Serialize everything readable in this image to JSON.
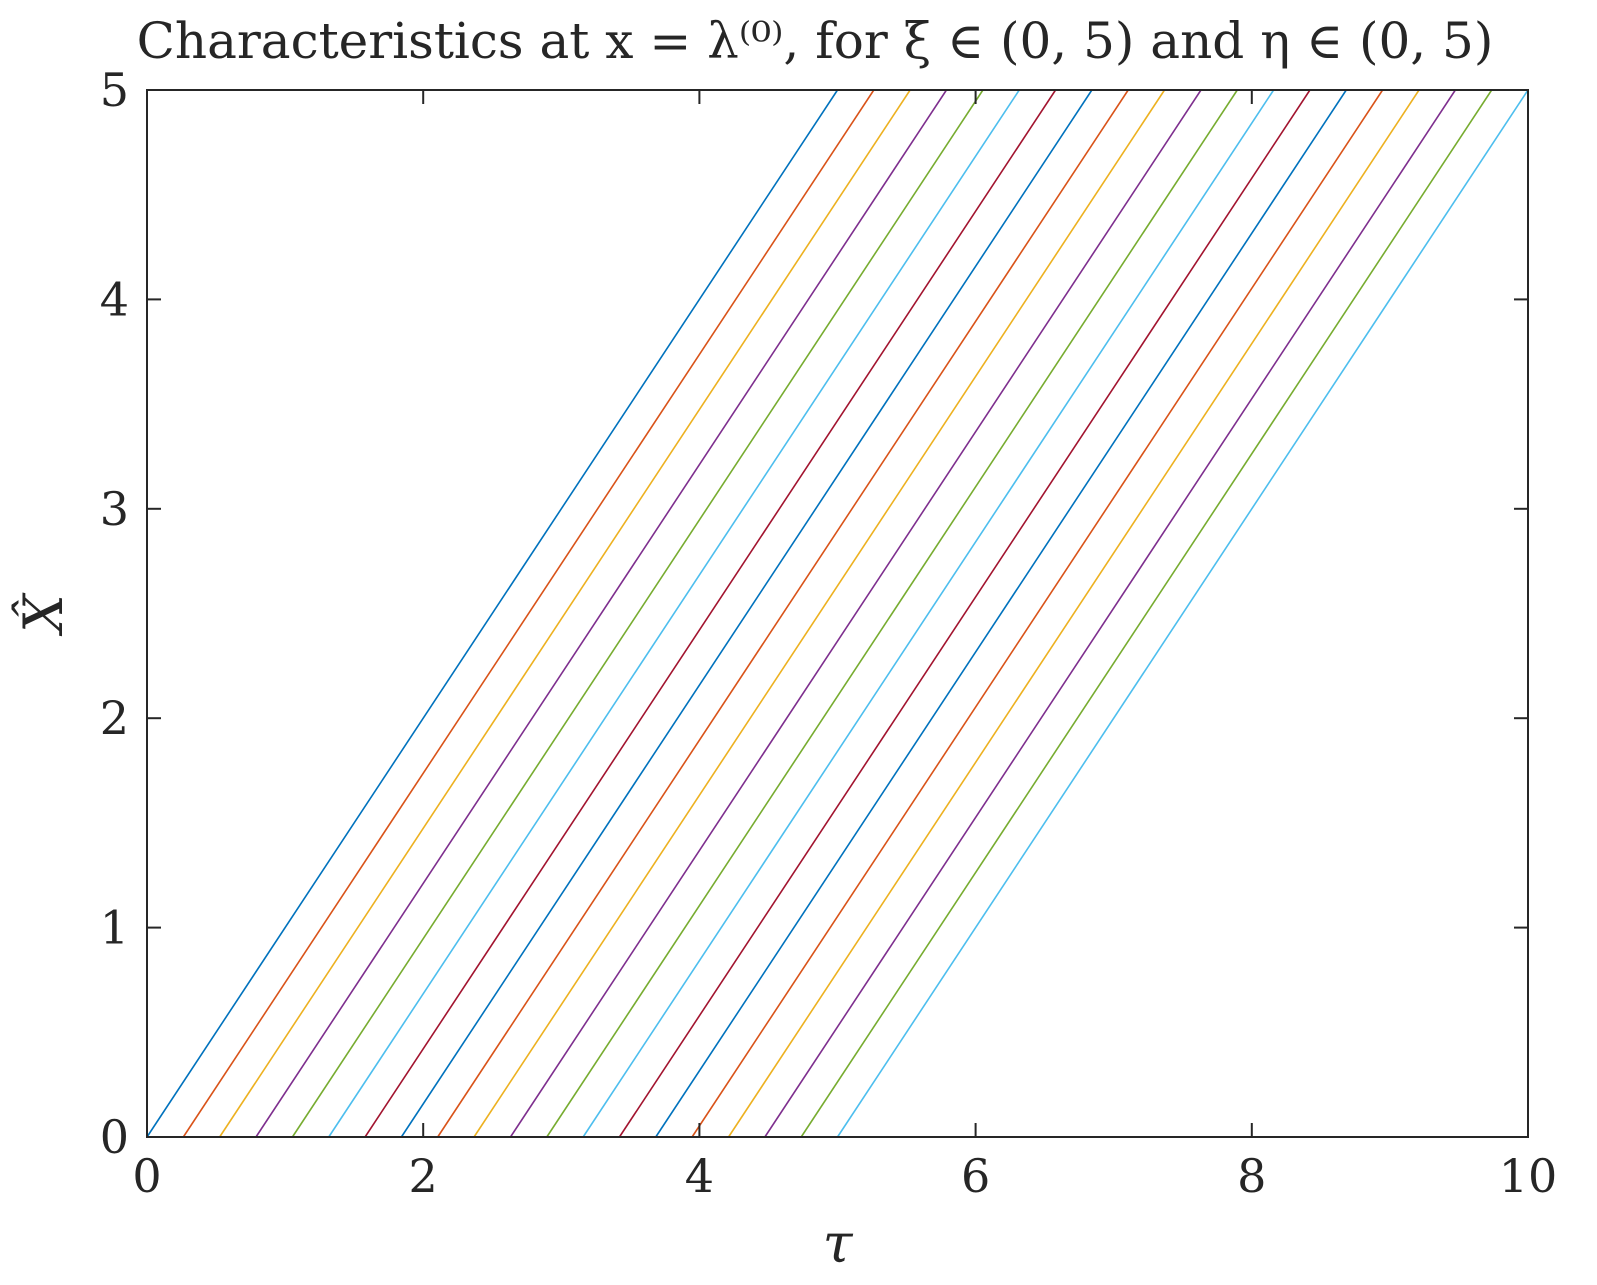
{
  "chart_data": {
    "type": "line",
    "title": "Characteristics at x = λ⁽⁰⁾, for ξ ∈ (0, 5) and η ∈ (0, 5)",
    "xlabel": "τ",
    "ylabel": "X̂",
    "xlim": [
      0,
      10
    ],
    "ylim": [
      0,
      5
    ],
    "xticks": [
      "0",
      "2",
      "4",
      "6",
      "8",
      "10"
    ],
    "yticks": [
      "0",
      "1",
      "2",
      "3",
      "4",
      "5"
    ],
    "grid": false,
    "legend": "none",
    "color_cycle": [
      "#0072BD",
      "#D95319",
      "#EDB120",
      "#7E2F8E",
      "#77AC30",
      "#4DBEEE",
      "#A2142F"
    ],
    "slope": 1,
    "series": [
      {
        "x": [
          0.0,
          5.0
        ],
        "y": [
          0,
          5
        ]
      },
      {
        "x": [
          0.263,
          5.263
        ],
        "y": [
          0,
          5
        ]
      },
      {
        "x": [
          0.526,
          5.526
        ],
        "y": [
          0,
          5
        ]
      },
      {
        "x": [
          0.789,
          5.789
        ],
        "y": [
          0,
          5
        ]
      },
      {
        "x": [
          1.053,
          6.053
        ],
        "y": [
          0,
          5
        ]
      },
      {
        "x": [
          1.316,
          6.316
        ],
        "y": [
          0,
          5
        ]
      },
      {
        "x": [
          1.579,
          6.579
        ],
        "y": [
          0,
          5
        ]
      },
      {
        "x": [
          1.842,
          6.842
        ],
        "y": [
          0,
          5
        ]
      },
      {
        "x": [
          2.105,
          7.105
        ],
        "y": [
          0,
          5
        ]
      },
      {
        "x": [
          2.368,
          7.368
        ],
        "y": [
          0,
          5
        ]
      },
      {
        "x": [
          2.632,
          7.632
        ],
        "y": [
          0,
          5
        ]
      },
      {
        "x": [
          2.895,
          7.895
        ],
        "y": [
          0,
          5
        ]
      },
      {
        "x": [
          3.158,
          8.158
        ],
        "y": [
          0,
          5
        ]
      },
      {
        "x": [
          3.421,
          8.421
        ],
        "y": [
          0,
          5
        ]
      },
      {
        "x": [
          3.684,
          8.684
        ],
        "y": [
          0,
          5
        ]
      },
      {
        "x": [
          3.947,
          8.947
        ],
        "y": [
          0,
          5
        ]
      },
      {
        "x": [
          4.211,
          9.211
        ],
        "y": [
          0,
          5
        ]
      },
      {
        "x": [
          4.474,
          9.474
        ],
        "y": [
          0,
          5
        ]
      },
      {
        "x": [
          4.737,
          9.737
        ],
        "y": [
          0,
          5
        ]
      },
      {
        "x": [
          5.0,
          10.0
        ],
        "y": [
          0,
          5
        ]
      }
    ]
  }
}
